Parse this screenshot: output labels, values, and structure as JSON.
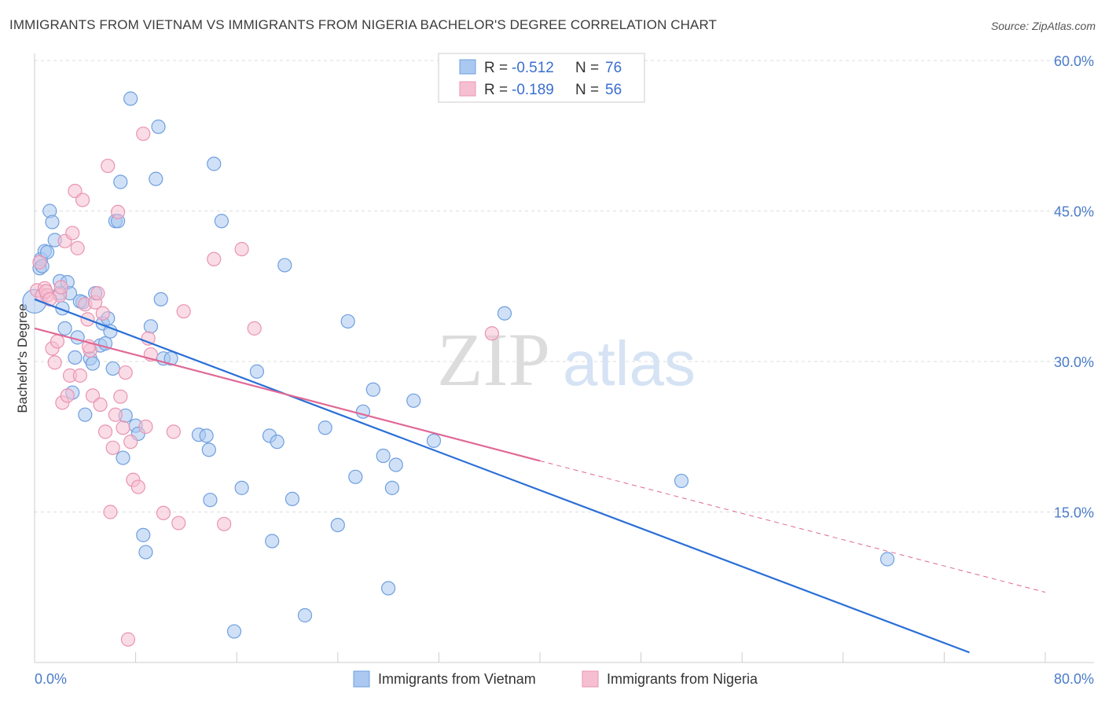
{
  "title": "IMMIGRANTS FROM VIETNAM VS IMMIGRANTS FROM NIGERIA BACHELOR'S DEGREE CORRELATION CHART",
  "source": "Source: ZipAtlas.com",
  "watermark": {
    "zip": "ZIP",
    "atlas": "atlas"
  },
  "colors": {
    "vietnam_fill": "#aac8f0",
    "vietnam_stroke": "#6f9fdf",
    "vietnam_line": "#2a6fd6",
    "nigeria_fill": "#f6bfd1",
    "nigeria_stroke": "#e994b1",
    "nigeria_line": "#e06895",
    "tick_text": "#4a7cc9",
    "grid": "#dddddd"
  },
  "legend": {
    "rows": [
      {
        "r_label": "R = ",
        "r_value": "-0.512",
        "n_label": "N = ",
        "n_value": "76"
      },
      {
        "r_label": "R = ",
        "r_value": "-0.189",
        "n_label": "N = ",
        "n_value": "56"
      }
    ]
  },
  "bottom_legend": [
    "Immigrants from Vietnam",
    "Immigrants from Nigeria"
  ],
  "chart_data": {
    "type": "scatter",
    "title": "IMMIGRANTS FROM VIETNAM VS IMMIGRANTS FROM NIGERIA BACHELOR'S DEGREE CORRELATION CHART",
    "xlabel": "",
    "ylabel": "Bachelor's Degree",
    "xlim": [
      0,
      80
    ],
    "ylim": [
      0,
      60
    ],
    "x_tick_labels": [
      "0.0%",
      "80.0%"
    ],
    "y_ticks": [
      15,
      30,
      45,
      60
    ],
    "y_tick_labels": [
      "15.0%",
      "30.0%",
      "45.0%",
      "60.0%"
    ],
    "grid": true,
    "legend_position": "top-center",
    "series": [
      {
        "name": "Immigrants from Vietnam",
        "r": -0.512,
        "n": 76,
        "trend": {
          "x": [
            0,
            74
          ],
          "y": [
            36.2,
            1.0
          ]
        },
        "points": [
          [
            0.0,
            36.0
          ],
          [
            0.4,
            39.3
          ],
          [
            0.5,
            40.2
          ],
          [
            0.8,
            41.0
          ],
          [
            1.0,
            40.9
          ],
          [
            1.2,
            45.0
          ],
          [
            1.4,
            43.9
          ],
          [
            1.6,
            42.1
          ],
          [
            2.0,
            38.0
          ],
          [
            2.0,
            36.8
          ],
          [
            2.2,
            35.3
          ],
          [
            2.4,
            33.3
          ],
          [
            2.6,
            37.9
          ],
          [
            2.8,
            36.8
          ],
          [
            3.0,
            26.9
          ],
          [
            3.2,
            30.4
          ],
          [
            3.4,
            32.4
          ],
          [
            3.8,
            35.9
          ],
          [
            4.0,
            24.7
          ],
          [
            4.4,
            30.3
          ],
          [
            4.6,
            29.8
          ],
          [
            4.8,
            36.8
          ],
          [
            5.2,
            31.6
          ],
          [
            5.4,
            33.8
          ],
          [
            5.6,
            31.8
          ],
          [
            5.8,
            34.3
          ],
          [
            6.0,
            33.0
          ],
          [
            6.2,
            29.3
          ],
          [
            6.4,
            44.0
          ],
          [
            6.6,
            44.0
          ],
          [
            6.8,
            47.9
          ],
          [
            7.0,
            20.4
          ],
          [
            7.2,
            24.6
          ],
          [
            7.6,
            56.2
          ],
          [
            8.0,
            23.6
          ],
          [
            8.2,
            22.8
          ],
          [
            8.6,
            12.7
          ],
          [
            8.8,
            11.0
          ],
          [
            9.2,
            33.5
          ],
          [
            9.6,
            48.2
          ],
          [
            9.8,
            53.4
          ],
          [
            10.0,
            36.2
          ],
          [
            10.2,
            30.3
          ],
          [
            10.8,
            30.3
          ],
          [
            13.0,
            22.7
          ],
          [
            13.6,
            22.6
          ],
          [
            13.8,
            21.2
          ],
          [
            13.9,
            16.2
          ],
          [
            14.2,
            49.7
          ],
          [
            14.8,
            44.0
          ],
          [
            15.8,
            3.1
          ],
          [
            16.4,
            17.4
          ],
          [
            17.6,
            29.0
          ],
          [
            18.6,
            22.6
          ],
          [
            18.8,
            12.1
          ],
          [
            19.2,
            22.0
          ],
          [
            19.8,
            39.6
          ],
          [
            20.4,
            16.3
          ],
          [
            21.4,
            4.7
          ],
          [
            23.0,
            23.4
          ],
          [
            24.0,
            13.7
          ],
          [
            24.8,
            34.0
          ],
          [
            25.4,
            18.5
          ],
          [
            26.0,
            25.0
          ],
          [
            26.8,
            27.2
          ],
          [
            27.6,
            20.6
          ],
          [
            28.0,
            7.4
          ],
          [
            28.3,
            17.4
          ],
          [
            28.6,
            19.7
          ],
          [
            30.0,
            26.1
          ],
          [
            31.6,
            22.1
          ],
          [
            37.2,
            34.8
          ],
          [
            51.2,
            18.1
          ],
          [
            67.5,
            10.3
          ],
          [
            0.6,
            39.5
          ],
          [
            3.6,
            36.0
          ]
        ]
      },
      {
        "name": "Immigrants from Nigeria",
        "r": -0.189,
        "n": 56,
        "trend": {
          "x": [
            0,
            40
          ],
          "y": [
            33.3,
            20.1
          ]
        },
        "trend_extension": {
          "x": [
            40,
            80
          ],
          "y": [
            20.1,
            7.0
          ]
        },
        "points": [
          [
            0.2,
            37.1
          ],
          [
            0.4,
            39.9
          ],
          [
            0.6,
            36.6
          ],
          [
            0.8,
            37.3
          ],
          [
            1.0,
            36.6
          ],
          [
            1.4,
            31.3
          ],
          [
            1.6,
            29.9
          ],
          [
            1.8,
            32.0
          ],
          [
            2.0,
            36.6
          ],
          [
            2.2,
            25.9
          ],
          [
            2.4,
            42.0
          ],
          [
            2.6,
            26.6
          ],
          [
            2.8,
            28.6
          ],
          [
            3.0,
            42.8
          ],
          [
            3.2,
            47.0
          ],
          [
            3.4,
            41.3
          ],
          [
            3.6,
            28.6
          ],
          [
            3.8,
            46.1
          ],
          [
            4.0,
            35.7
          ],
          [
            4.2,
            34.2
          ],
          [
            4.4,
            31.1
          ],
          [
            4.6,
            26.6
          ],
          [
            4.8,
            35.9
          ],
          [
            5.0,
            36.8
          ],
          [
            5.2,
            25.7
          ],
          [
            5.4,
            34.8
          ],
          [
            5.6,
            23.0
          ],
          [
            5.8,
            49.5
          ],
          [
            6.0,
            15.0
          ],
          [
            6.2,
            21.4
          ],
          [
            6.4,
            24.7
          ],
          [
            6.6,
            44.9
          ],
          [
            6.8,
            26.5
          ],
          [
            7.0,
            23.4
          ],
          [
            7.2,
            28.9
          ],
          [
            7.4,
            2.3
          ],
          [
            7.6,
            22.0
          ],
          [
            7.8,
            18.2
          ],
          [
            8.2,
            17.5
          ],
          [
            8.6,
            52.7
          ],
          [
            8.8,
            23.5
          ],
          [
            9.0,
            32.3
          ],
          [
            9.2,
            30.7
          ],
          [
            10.2,
            14.9
          ],
          [
            11.0,
            23.0
          ],
          [
            11.4,
            13.9
          ],
          [
            11.8,
            35.0
          ],
          [
            14.2,
            40.2
          ],
          [
            15.0,
            13.8
          ],
          [
            16.4,
            41.2
          ],
          [
            17.4,
            33.3
          ],
          [
            36.2,
            32.8
          ],
          [
            0.9,
            37.0
          ],
          [
            1.2,
            36.2
          ],
          [
            2.1,
            37.4
          ],
          [
            4.3,
            31.5
          ]
        ]
      }
    ]
  }
}
